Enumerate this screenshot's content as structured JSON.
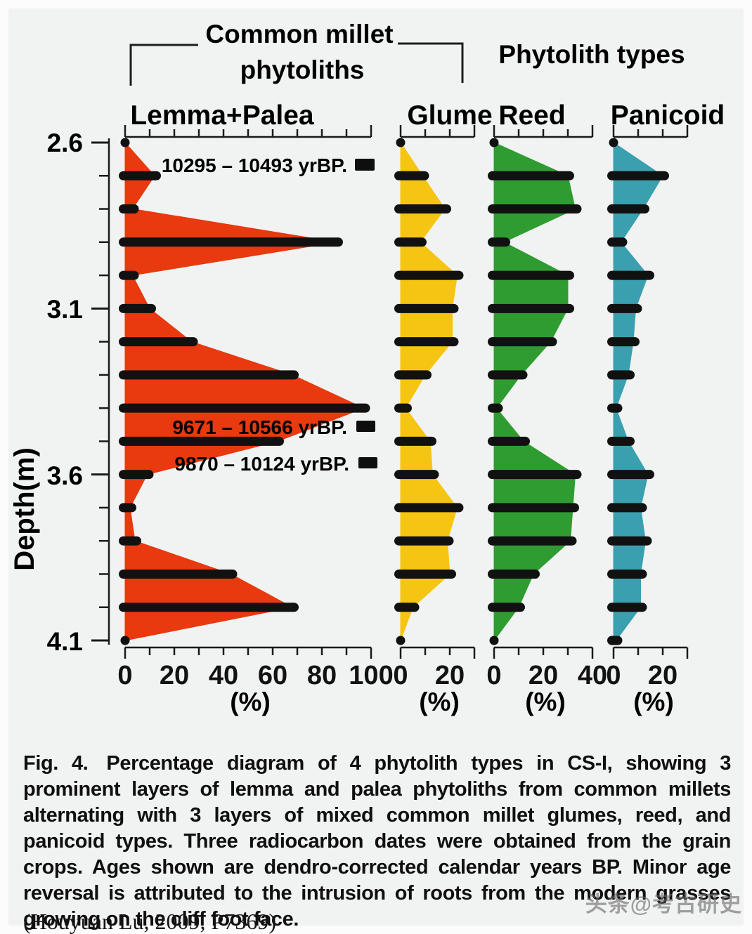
{
  "figure": {
    "bracket_title_line1": "Common millet",
    "bracket_title_line2": "phytoliths",
    "right_header": "Phytolith types",
    "depth_axis_label": "Depth(m)",
    "percent_label": "(%)"
  },
  "chart_data": {
    "type": "area",
    "description": "Percentage depth-profiles of 4 phytolith types in section CS-I; horizontal black bars mark sample values at each depth",
    "depth_axis": {
      "label": "Depth(m)",
      "min_m": 2.6,
      "max_m": 4.1,
      "major_tick_labels": [
        "2.6",
        "3.1",
        "3.6",
        "4.1"
      ],
      "minor_tick_step_m": 0.1
    },
    "depths_m": [
      2.6,
      2.7,
      2.8,
      2.9,
      3.0,
      3.1,
      3.2,
      3.3,
      3.4,
      3.5,
      3.6,
      3.7,
      3.8,
      3.9,
      4.0,
      4.1
    ],
    "x_unit": "(%)",
    "panels": [
      {
        "name": "Lemma+Palea",
        "color": "#e8390f",
        "xmax": 100,
        "tick_step": 10,
        "tick_labels": [
          0,
          20,
          40,
          60,
          80,
          100
        ],
        "values": [
          0,
          12,
          3,
          86,
          3,
          10,
          27,
          68,
          97,
          62,
          9,
          2,
          4,
          43,
          68,
          0
        ]
      },
      {
        "name": "Glume",
        "color": "#f6c513",
        "xmax": 30,
        "tick_step": 10,
        "tick_labels": [
          0,
          20
        ],
        "values": [
          0,
          9,
          18,
          8,
          23,
          21,
          21,
          10,
          2,
          12,
          13,
          23,
          19,
          20,
          5,
          0
        ]
      },
      {
        "name": "Reed",
        "color": "#2f9c32",
        "xmax": 40,
        "tick_step": 10,
        "tick_labels": [
          0,
          20,
          40
        ],
        "values": [
          0,
          30,
          33,
          4,
          30,
          30,
          23,
          11,
          1,
          12,
          33,
          32,
          31,
          16,
          10,
          0
        ]
      },
      {
        "name": "Panicoid",
        "color": "#3aa0af",
        "xmax": 30,
        "tick_step": 10,
        "tick_labels": [
          0,
          20
        ],
        "values": [
          0,
          20,
          12,
          3,
          14,
          9,
          8,
          6,
          1,
          6,
          14,
          11,
          13,
          11,
          11,
          1
        ]
      }
    ],
    "annotations": [
      {
        "label": "10295 – 10493 yrBP.",
        "depth_m": 2.67
      },
      {
        "label": "9671 – 10566 yrBP.",
        "depth_m": 3.455
      },
      {
        "label": "9870 – 10124 yrBP.",
        "depth_m": 3.565
      }
    ],
    "legend_position": "none",
    "grid": false
  },
  "caption": {
    "fig_label": "Fig. 4.",
    "text": "Percentage diagram of 4 phytolith types in CS-I, showing 3 prominent layers of lemma and palea phytoliths from common millets alternating with 3 layers of mixed common millet glumes, reed, and panicoid types. Three radiocarbon dates were obtained from the grain crops. Ages shown are dendro-corrected calendar years BP. Minor age reversal is attributed to the intrusion of roots from the modern grasses growing on the cliff foot face.",
    "source": "(Houyuan  Lu, 2009, P7369)"
  },
  "watermark": "头条@考古研史"
}
